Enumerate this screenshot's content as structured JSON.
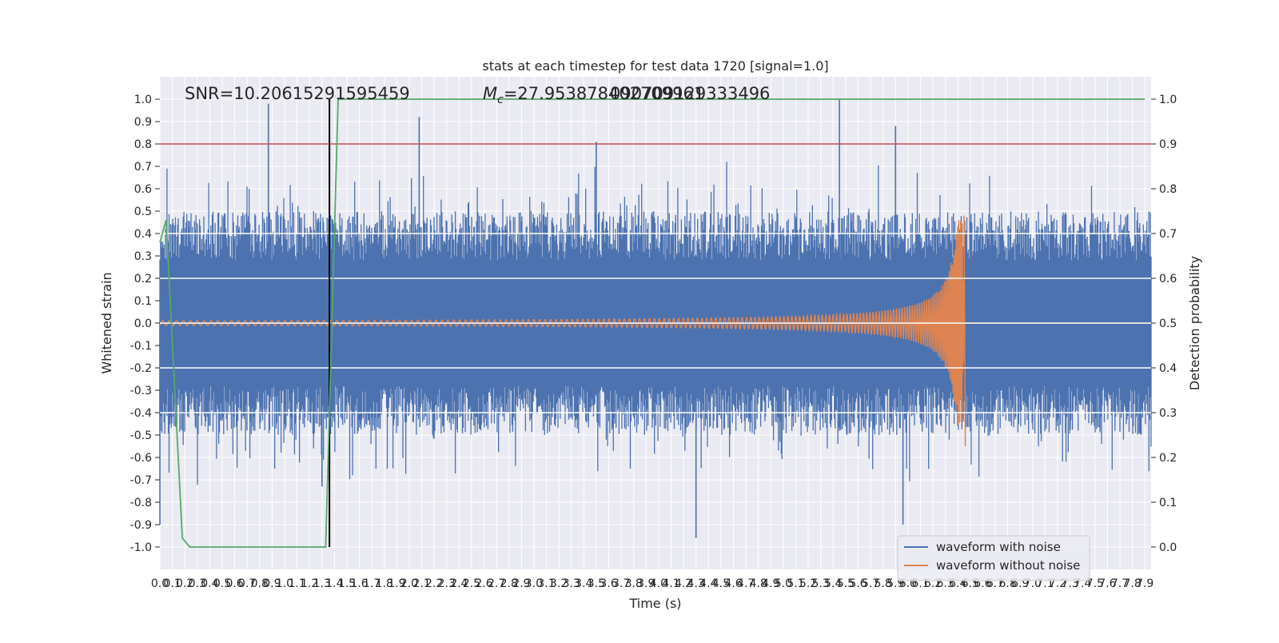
{
  "chart_data": {
    "type": "line",
    "title": "stats at each timestep for test data 1720 [signal=1.0]",
    "xlabel": "Time (s)",
    "ylabel_left": "Whitened strain",
    "ylabel_right": "Detection probability",
    "xlim": [
      0.0,
      7.95
    ],
    "ylim_left": [
      -1.1,
      1.1
    ],
    "ylim_right": [
      -0.05,
      1.05
    ],
    "x_ticks": [
      "0.0",
      "0.1",
      "0.2",
      "0.3",
      "0.4",
      "0.5",
      "0.6",
      "0.7",
      "0.8",
      "0.9",
      "1.0",
      "1.1",
      "1.2",
      "1.3",
      "1.4",
      "1.5",
      "1.6",
      "1.7",
      "1.8",
      "1.9",
      "2.0",
      "2.1",
      "2.2",
      "2.3",
      "2.4",
      "2.5",
      "2.6",
      "2.7",
      "2.8",
      "2.9",
      "3.0",
      "3.1",
      "3.2",
      "3.3",
      "3.4",
      "3.5",
      "3.6",
      "3.7",
      "3.8",
      "3.9",
      "4.0",
      "4.1",
      "4.2",
      "4.3",
      "4.4",
      "4.5",
      "4.6",
      "4.7",
      "4.8",
      "4.9",
      "5.0",
      "5.1",
      "5.2",
      "5.3",
      "5.4",
      "5.5",
      "5.6",
      "5.7",
      "5.8",
      "5.9",
      "6.0",
      "6.1",
      "6.2",
      "6.3",
      "6.4",
      "6.5",
      "6.6",
      "6.7",
      "6.8",
      "6.9",
      "7.0",
      "7.1",
      "7.2",
      "7.3",
      "7.4",
      "7.5",
      "7.6",
      "7.7",
      "7.8",
      "7.9"
    ],
    "y_ticks_left": [
      "-1.0",
      "-0.9",
      "-0.8",
      "-0.7",
      "-0.6",
      "-0.5",
      "-0.4",
      "-0.3",
      "-0.2",
      "-0.1",
      "0.0",
      "0.1",
      "0.2",
      "0.3",
      "0.4",
      "0.5",
      "0.6",
      "0.7",
      "0.8",
      "0.9",
      "1.0"
    ],
    "y_ticks_right": [
      "0.0",
      "0.1",
      "0.2",
      "0.3",
      "0.4",
      "0.5",
      "0.6",
      "0.7",
      "0.8",
      "0.9",
      "1.0"
    ],
    "grid": true,
    "background": "#eaeaf2",
    "annotations": {
      "snr": "SNR=10.20615291595459",
      "mc_prefix": "M",
      "mc_sub": "c",
      "mc_overlap_a": "=27.953878402709961",
      "mc_overlap_b": "090709129333496"
    },
    "legend": {
      "position": "lower-right",
      "entries": [
        "waveform with noise",
        "waveform without noise"
      ]
    },
    "series": [
      {
        "name": "waveform with noise",
        "axis": "left",
        "color": "#4c72b0",
        "kind": "noise",
        "envelope": [
          [
            0.0,
            0.3
          ],
          [
            7.95,
            0.3
          ]
        ],
        "notable_peaks": [
          [
            0.87,
            0.98
          ],
          [
            2.08,
            0.92
          ],
          [
            3.5,
            0.81
          ],
          [
            5.45,
            1.0
          ],
          [
            5.9,
            0.88
          ],
          [
            4.3,
            -0.96
          ],
          [
            5.96,
            -0.9
          ],
          [
            0.0,
            -0.9
          ],
          [
            1.3,
            -0.73
          ]
        ]
      },
      {
        "name": "waveform without noise",
        "axis": "left",
        "color": "#dd8452",
        "kind": "chirp",
        "t_merger": 6.45,
        "peak_amplitude": 0.48,
        "min_amplitude": -0.55
      },
      {
        "name": "detection probability",
        "axis": "right",
        "color": "#55a868",
        "x": [
          0.0,
          0.05,
          0.18,
          0.24,
          0.3,
          1.28,
          1.33,
          1.38,
          1.43,
          7.9
        ],
        "values": [
          0.68,
          0.73,
          0.02,
          0.0,
          0.0,
          0.0,
          0.0,
          0.5,
          1.0,
          1.0
        ]
      }
    ],
    "threshold": {
      "axis": "right",
      "value": 0.9,
      "color": "#c44e52"
    },
    "event_marker": {
      "x": 1.36,
      "color": "#000000"
    }
  }
}
